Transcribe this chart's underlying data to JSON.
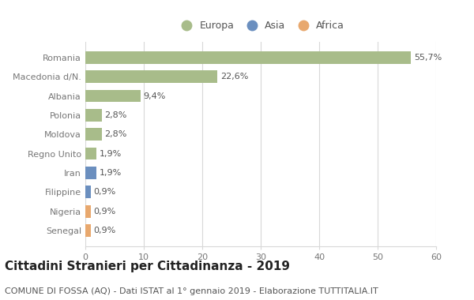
{
  "categories": [
    "Senegal",
    "Nigeria",
    "Filippine",
    "Iran",
    "Regno Unito",
    "Moldova",
    "Polonia",
    "Albania",
    "Macedonia d/N.",
    "Romania"
  ],
  "values": [
    0.9,
    0.9,
    0.9,
    1.9,
    1.9,
    2.8,
    2.8,
    9.4,
    22.6,
    55.7
  ],
  "labels": [
    "0,9%",
    "0,9%",
    "0,9%",
    "1,9%",
    "1,9%",
    "2,8%",
    "2,8%",
    "9,4%",
    "22,6%",
    "55,7%"
  ],
  "colors": [
    "#e8a86e",
    "#e8a86e",
    "#6b8fbf",
    "#6b8fbf",
    "#a8bc8a",
    "#a8bc8a",
    "#a8bc8a",
    "#a8bc8a",
    "#a8bc8a",
    "#a8bc8a"
  ],
  "legend_labels": [
    "Europa",
    "Asia",
    "Africa"
  ],
  "legend_colors": [
    "#a8bc8a",
    "#6b8fbf",
    "#e8a86e"
  ],
  "title": "Cittadini Stranieri per Cittadinanza - 2019",
  "subtitle": "COMUNE DI FOSSA (AQ) - Dati ISTAT al 1° gennaio 2019 - Elaborazione TUTTITALIA.IT",
  "xlim": [
    0,
    60
  ],
  "xticks": [
    0,
    10,
    20,
    30,
    40,
    50,
    60
  ],
  "background_color": "#ffffff",
  "grid_color": "#d8d8d8",
  "bar_height": 0.65,
  "title_fontsize": 11,
  "subtitle_fontsize": 8,
  "label_fontsize": 8,
  "tick_fontsize": 8,
  "legend_fontsize": 9,
  "ytick_color": "#777777",
  "xtick_color": "#777777",
  "label_color": "#555555"
}
